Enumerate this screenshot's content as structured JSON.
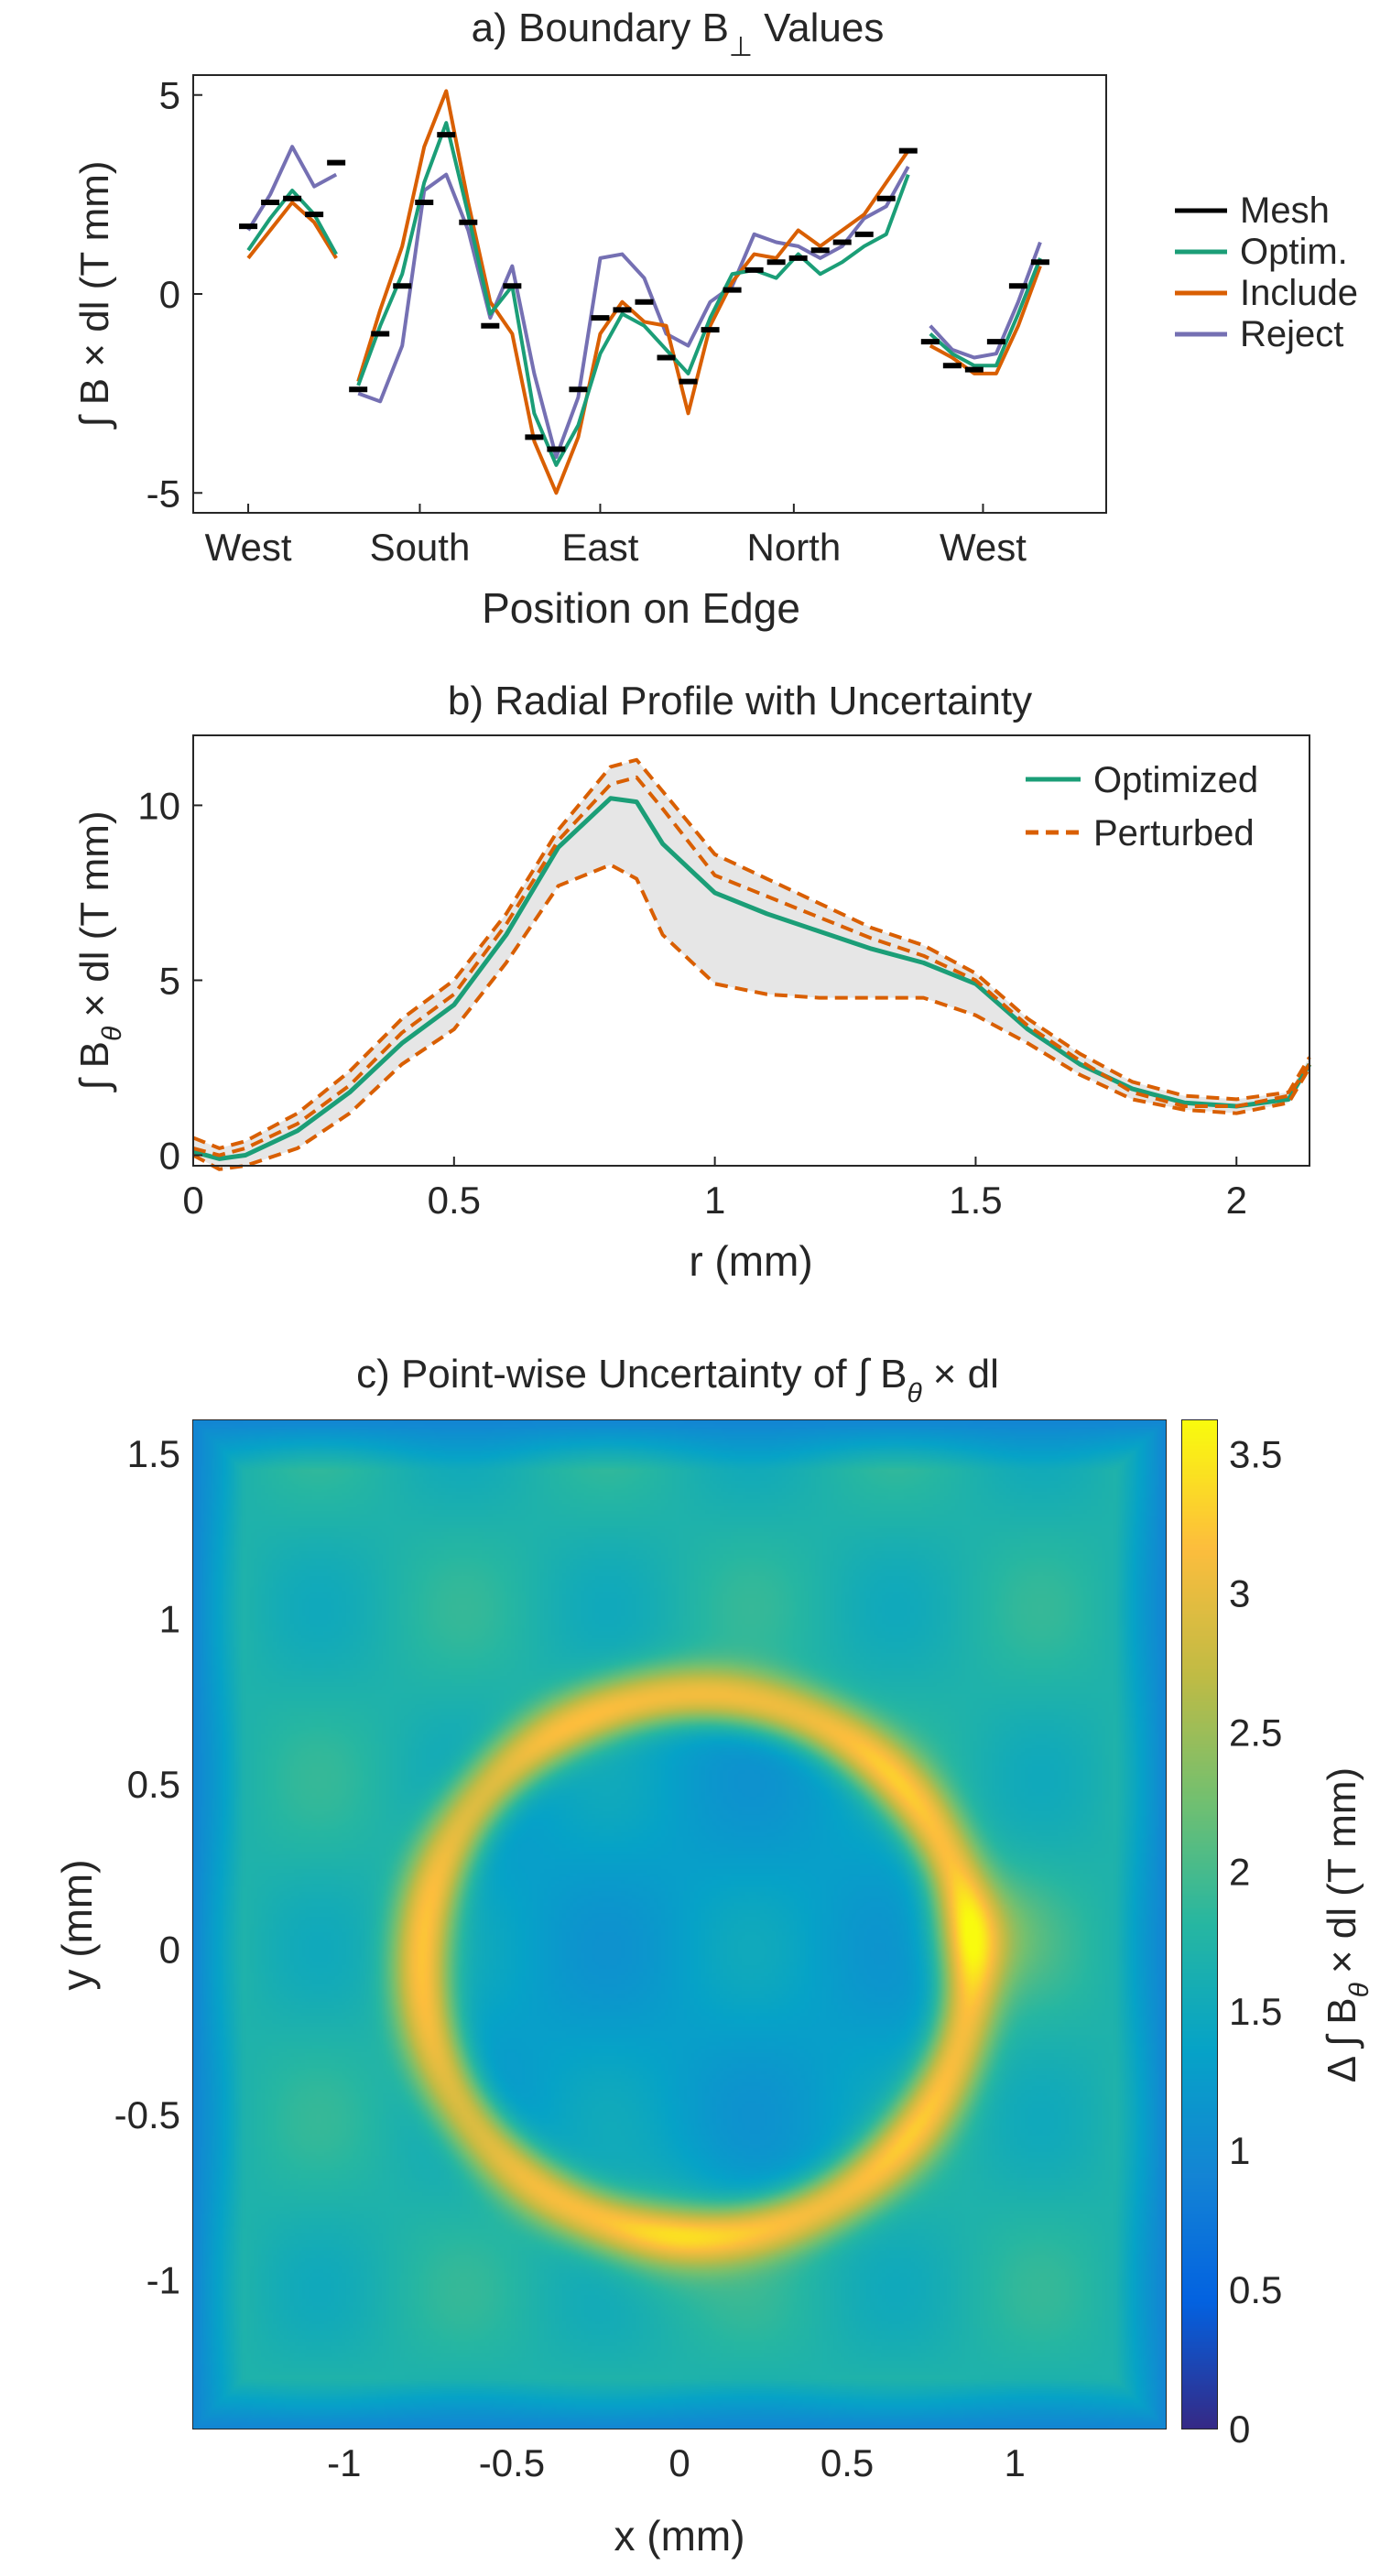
{
  "chart_data": [
    {
      "type": "line",
      "title": "a) Boundary B⊥ Values",
      "title_main": "a) Boundary B",
      "title_sub": "⊥",
      "title_tail": "Values",
      "xlabel": "Position on Edge",
      "ylabel": "∫ B × dl (T mm)",
      "xlim": [
        0,
        4
      ],
      "ylim": [
        -5.5,
        5.5
      ],
      "xticks": [
        {
          "pos": 0.0,
          "label": "West"
        },
        {
          "pos": 0.78,
          "label": "South"
        },
        {
          "pos": 1.6,
          "label": "East"
        },
        {
          "pos": 2.48,
          "label": "North"
        },
        {
          "pos": 3.34,
          "label": "West"
        }
      ],
      "yticks": [
        {
          "value": 5,
          "label": "5"
        },
        {
          "value": 0,
          "label": "0"
        },
        {
          "value": -5,
          "label": "-5"
        }
      ],
      "legend": {
        "location": "right",
        "entries": [
          "Mesh",
          "Optim.",
          "Include",
          "Reject"
        ]
      },
      "colors": {
        "Mesh": "#000000",
        "Optim.": "#1b9e77",
        "Include": "#d95f02",
        "Reject": "#7570b3"
      },
      "segments": [
        {
          "x": [
            0.0,
            0.1,
            0.2,
            0.3,
            0.4
          ],
          "series": [
            {
              "name": "Optim.",
              "values": [
                1.1,
                1.9,
                2.6,
                2.0,
                1.0
              ]
            },
            {
              "name": "Include",
              "values": [
                0.9,
                1.6,
                2.3,
                1.8,
                0.9
              ]
            },
            {
              "name": "Reject",
              "values": [
                1.6,
                2.5,
                3.7,
                2.7,
                3.0
              ]
            }
          ],
          "mesh": [
            1.7,
            2.3,
            2.4,
            2.0,
            3.3
          ]
        },
        {
          "x": [
            0.5,
            0.6,
            0.7,
            0.8,
            0.9,
            1.0,
            1.1,
            1.2,
            1.3,
            1.4,
            1.5,
            1.6,
            1.7,
            1.8,
            1.9,
            2.0,
            2.1,
            2.2,
            2.3,
            2.4,
            2.5,
            2.6,
            2.7,
            2.8,
            2.9,
            3.0
          ],
          "series": [
            {
              "name": "Optim.",
              "values": [
                -2.3,
                -0.8,
                0.5,
                2.8,
                4.3,
                2.0,
                -0.5,
                0.2,
                -3.0,
                -4.3,
                -3.3,
                -1.5,
                -0.5,
                -0.8,
                -1.4,
                -2.0,
                -0.6,
                0.5,
                0.6,
                0.4,
                1.0,
                0.5,
                0.8,
                1.2,
                1.5,
                3.0
              ]
            },
            {
              "name": "Include",
              "values": [
                -2.2,
                -0.4,
                1.2,
                3.7,
                5.1,
                2.3,
                -0.2,
                -1.0,
                -3.7,
                -5.0,
                -3.6,
                -1.0,
                -0.2,
                -0.7,
                -0.8,
                -3.0,
                -0.8,
                0.3,
                1.0,
                0.9,
                1.6,
                1.2,
                1.6,
                2.0,
                2.8,
                3.6
              ]
            },
            {
              "name": "Reject",
              "values": [
                -2.5,
                -2.7,
                -1.3,
                2.6,
                3.0,
                1.6,
                -0.6,
                0.7,
                -2.0,
                -4.1,
                -2.6,
                0.9,
                1.0,
                0.4,
                -1.0,
                -1.3,
                -0.2,
                0.2,
                1.5,
                1.3,
                1.2,
                0.9,
                1.2,
                1.9,
                2.2,
                3.2
              ]
            }
          ],
          "mesh": [
            -2.4,
            -1.0,
            0.2,
            2.3,
            4.0,
            1.8,
            -0.8,
            0.2,
            -3.6,
            -3.9,
            -2.4,
            -0.6,
            -0.4,
            -0.2,
            -1.6,
            -2.2,
            -0.9,
            0.1,
            0.6,
            0.8,
            0.9,
            1.1,
            1.3,
            1.5,
            2.4,
            3.6
          ]
        },
        {
          "x": [
            3.1,
            3.2,
            3.3,
            3.4,
            3.5,
            3.6
          ],
          "series": [
            {
              "name": "Optim.",
              "values": [
                -1.0,
                -1.5,
                -1.8,
                -1.8,
                -0.5,
                0.9
              ]
            },
            {
              "name": "Include",
              "values": [
                -1.3,
                -1.6,
                -2.0,
                -2.0,
                -0.8,
                0.7
              ]
            },
            {
              "name": "Reject",
              "values": [
                -0.8,
                -1.4,
                -1.6,
                -1.5,
                -0.2,
                1.3
              ]
            }
          ],
          "mesh": [
            -1.2,
            -1.8,
            -1.9,
            -1.2,
            0.2,
            0.8
          ]
        }
      ]
    },
    {
      "type": "line",
      "title": "b) Radial Profile with Uncertainty",
      "xlabel": "r (mm)",
      "ylabel": "∫ Bθ × dl (T mm)",
      "ylabel_parts": {
        "main": "∫ B",
        "sub": "θ",
        "tail": "× dl (T mm)"
      },
      "xlim": [
        0,
        2.14
      ],
      "ylim": [
        -0.3,
        12
      ],
      "xticks": [
        0,
        0.5,
        1,
        1.5,
        2
      ],
      "xtick_labels": [
        "0",
        "0.5",
        "1",
        "1.5",
        "2"
      ],
      "yticks": [
        0,
        5,
        10
      ],
      "ytick_labels": [
        "0",
        "5",
        "10"
      ],
      "legend": {
        "location": "top-right",
        "entries": [
          "Optimized",
          "Perturbed"
        ]
      },
      "colors": {
        "Optimized": "#1b9e77",
        "Perturbed": "#d95f02",
        "band": "#e6e6e6"
      },
      "x": [
        0.0,
        0.05,
        0.1,
        0.2,
        0.3,
        0.4,
        0.5,
        0.6,
        0.7,
        0.8,
        0.85,
        0.9,
        1.0,
        1.1,
        1.2,
        1.3,
        1.4,
        1.5,
        1.6,
        1.7,
        1.8,
        1.9,
        2.0,
        2.1,
        2.14
      ],
      "series": [
        {
          "name": "Optimized",
          "values": [
            0.1,
            -0.1,
            0.0,
            0.7,
            1.8,
            3.2,
            4.3,
            6.3,
            8.8,
            10.2,
            10.1,
            8.9,
            7.5,
            6.9,
            6.4,
            5.9,
            5.5,
            4.9,
            3.6,
            2.6,
            1.9,
            1.5,
            1.4,
            1.6,
            2.6
          ]
        },
        {
          "name": "Perturbed upper",
          "values": [
            0.5,
            0.2,
            0.4,
            1.2,
            2.4,
            3.9,
            5.0,
            6.9,
            9.3,
            11.1,
            11.3,
            10.4,
            8.6,
            7.9,
            7.2,
            6.5,
            6.0,
            5.2,
            3.9,
            2.9,
            2.1,
            1.7,
            1.6,
            1.8,
            2.8
          ]
        },
        {
          "name": "Perturbed mid",
          "values": [
            0.2,
            0.0,
            0.2,
            0.9,
            2.0,
            3.5,
            4.6,
            6.6,
            9.0,
            10.6,
            10.8,
            9.9,
            8.0,
            7.4,
            6.8,
            6.2,
            5.7,
            5.0,
            3.7,
            2.7,
            1.8,
            1.4,
            1.4,
            1.7,
            2.6
          ]
        },
        {
          "name": "Perturbed lower",
          "values": [
            0.0,
            -0.4,
            -0.3,
            0.2,
            1.2,
            2.6,
            3.6,
            5.5,
            7.7,
            8.3,
            7.9,
            6.3,
            4.9,
            4.6,
            4.5,
            4.5,
            4.5,
            4.0,
            3.2,
            2.3,
            1.6,
            1.3,
            1.2,
            1.5,
            2.5
          ]
        }
      ],
      "legend_labels": {
        "optimized": "Optimized",
        "perturbed": "Perturbed"
      }
    },
    {
      "type": "heatmap",
      "title": "c) Point-wise Uncertainty of ∫ Bθ × dl",
      "title_parts": {
        "main": "c) Point-wise Uncertainty of ∫ B",
        "sub": "θ",
        "tail": "× dl"
      },
      "xlabel": "x (mm)",
      "ylabel": "y (mm)",
      "xlim": [
        -1.45,
        1.45
      ],
      "ylim": [
        -1.45,
        1.6
      ],
      "xticks": [
        -1,
        -0.5,
        0,
        0.5,
        1
      ],
      "xtick_labels": [
        "-1",
        "-0.5",
        "0",
        "0.5",
        "1"
      ],
      "yticks": [
        -1,
        -0.5,
        0,
        0.5,
        1,
        1.5
      ],
      "ytick_labels": [
        "-1",
        "-0.5",
        "0",
        "0.5",
        "1",
        "1.5"
      ],
      "field": {
        "ring_center": [
          0.05,
          -0.05
        ],
        "ring_radius": 0.82,
        "ring_peak": 3.1,
        "hotspot_east": [
          0.9,
          0.05,
          3.5
        ],
        "hotspot_south": [
          -0.05,
          -0.85,
          3.2
        ],
        "inner_level": 1.3,
        "outer_level": 1.7,
        "edge_level": 0.9
      },
      "colorbar": {
        "label": "Δ ∫ Bθ × dl (T mm)",
        "label_parts": {
          "main": "Δ ∫ B",
          "sub": "θ",
          "tail": "× dl (T mm)"
        },
        "range": [
          0,
          3.62
        ],
        "ticks": [
          0,
          0.5,
          1,
          1.5,
          2,
          2.5,
          3,
          3.5
        ],
        "tick_labels": [
          "0",
          "0.5",
          "1",
          "1.5",
          "2",
          "2.5",
          "3",
          "3.5"
        ],
        "colormap": "parula"
      }
    }
  ]
}
